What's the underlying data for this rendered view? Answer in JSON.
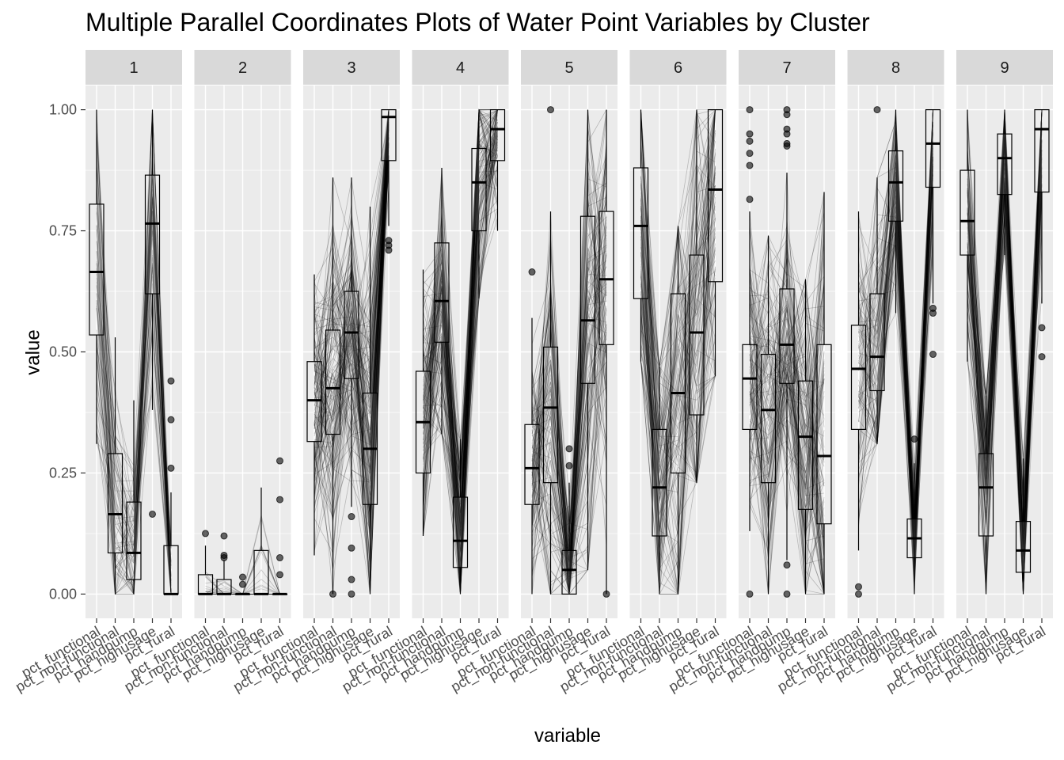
{
  "chart_data": {
    "type": "parallel-coordinates-boxplot",
    "title": "Multiple Parallel Coordinates Plots of Water Point Variables by Cluster",
    "xlabel": "variable",
    "ylabel": "value",
    "ylim": [
      -0.05,
      1.05
    ],
    "yticks": [
      0.0,
      0.25,
      0.5,
      0.75,
      1.0
    ],
    "ytick_labels": [
      "0.00",
      "0.25",
      "0.50",
      "0.75",
      "1.00"
    ],
    "variables": [
      "pct_functional",
      "pct_non-functional",
      "pct_handpump",
      "pct_highusage",
      "pct_rural"
    ],
    "grid": true,
    "colors": {
      "panel_bg": "#ebebeb",
      "strip_bg": "#d9d9d9",
      "grid": "#ffffff",
      "line": "#000000",
      "box": "#000000",
      "box_fill": "#ffffff"
    },
    "facets": [
      {
        "label": "1",
        "lines": 70,
        "spread": 0.1,
        "boxes": [
          [
            0.31,
            0.535,
            0.665,
            0.805,
            1.0
          ],
          [
            0.0,
            0.085,
            0.165,
            0.29,
            0.53
          ],
          [
            0.0,
            0.03,
            0.085,
            0.19,
            0.4
          ],
          [
            0.38,
            0.62,
            0.765,
            0.865,
            1.0
          ],
          [
            0.0,
            0.0,
            0.0,
            0.1,
            0.21
          ]
        ],
        "outliers": [
          [],
          [],
          [],
          [
            0.165
          ],
          [
            0.44,
            0.36,
            0.26
          ]
        ]
      },
      {
        "label": "2",
        "lines": 25,
        "spread": 0.04,
        "boxes": [
          [
            0.0,
            0.0,
            0.0,
            0.04,
            0.1
          ],
          [
            0.0,
            0.0,
            0.0,
            0.03,
            0.07
          ],
          [
            0.0,
            0.0,
            0.0,
            0.0,
            0.0
          ],
          [
            0.0,
            0.0,
            0.0,
            0.09,
            0.22
          ],
          [
            0.0,
            0.0,
            0.0,
            0.0,
            0.0
          ]
        ],
        "outliers": [
          [
            0.125
          ],
          [
            0.12,
            0.08,
            0.075
          ],
          [
            0.035,
            0.02
          ],
          [],
          [
            0.275,
            0.195,
            0.075,
            0.04
          ]
        ]
      },
      {
        "label": "3",
        "lines": 150,
        "spread": 0.14,
        "boxes": [
          [
            0.08,
            0.315,
            0.4,
            0.48,
            0.66
          ],
          [
            0.0,
            0.33,
            0.425,
            0.545,
            0.86
          ],
          [
            0.18,
            0.445,
            0.54,
            0.625,
            0.86
          ],
          [
            0.0,
            0.185,
            0.3,
            0.415,
            0.8
          ],
          [
            0.76,
            0.895,
            0.985,
            1.0,
            1.0
          ]
        ],
        "outliers": [
          [],
          [
            0.0
          ],
          [
            0.16,
            0.095,
            0.03,
            0.0
          ],
          [],
          [
            0.73,
            0.72,
            0.71
          ]
        ]
      },
      {
        "label": "4",
        "lines": 130,
        "spread": 0.1,
        "boxes": [
          [
            0.12,
            0.25,
            0.355,
            0.46,
            0.67
          ],
          [
            0.33,
            0.52,
            0.605,
            0.725,
            0.88
          ],
          [
            0.0,
            0.055,
            0.11,
            0.2,
            0.32
          ],
          [
            0.61,
            0.75,
            0.85,
            0.92,
            1.0
          ],
          [
            0.75,
            0.895,
            0.96,
            1.0,
            1.0
          ]
        ],
        "outliers": [
          [],
          [],
          [],
          [],
          []
        ]
      },
      {
        "label": "5",
        "lines": 120,
        "spread": 0.14,
        "boxes": [
          [
            0.0,
            0.185,
            0.26,
            0.35,
            0.57
          ],
          [
            0.0,
            0.23,
            0.385,
            0.51,
            0.79
          ],
          [
            0.0,
            0.0,
            0.05,
            0.09,
            0.23
          ],
          [
            0.05,
            0.435,
            0.565,
            0.78,
            1.0
          ],
          [
            0.0,
            0.515,
            0.65,
            0.79,
            1.0
          ]
        ],
        "outliers": [
          [
            0.665
          ],
          [
            1.0
          ],
          [
            0.3,
            0.265
          ],
          [],
          [
            0.0
          ]
        ]
      },
      {
        "label": "6",
        "lines": 110,
        "spread": 0.12,
        "boxes": [
          [
            0.48,
            0.61,
            0.76,
            0.88,
            1.0
          ],
          [
            0.0,
            0.12,
            0.22,
            0.34,
            0.47
          ],
          [
            0.0,
            0.25,
            0.415,
            0.62,
            0.76
          ],
          [
            0.23,
            0.37,
            0.54,
            0.7,
            1.0
          ],
          [
            0.45,
            0.645,
            0.835,
            1.0,
            1.0
          ]
        ],
        "outliers": [
          [],
          [],
          [],
          [],
          []
        ]
      },
      {
        "label": "7",
        "lines": 130,
        "spread": 0.16,
        "boxes": [
          [
            0.13,
            0.34,
            0.445,
            0.515,
            0.79
          ],
          [
            0.0,
            0.23,
            0.38,
            0.495,
            0.74
          ],
          [
            0.07,
            0.435,
            0.515,
            0.63,
            0.87
          ],
          [
            0.0,
            0.175,
            0.325,
            0.44,
            0.65
          ],
          [
            0.0,
            0.145,
            0.285,
            0.515,
            0.83
          ]
        ],
        "outliers": [
          [
            1.0,
            0.95,
            0.935,
            0.91,
            0.885,
            0.815,
            0.0
          ],
          [],
          [
            1.0,
            0.99,
            0.96,
            0.95,
            0.93,
            0.925,
            0.06,
            0.0
          ],
          [],
          []
        ]
      },
      {
        "label": "8",
        "lines": 100,
        "spread": 0.07,
        "boxes": [
          [
            0.09,
            0.34,
            0.465,
            0.555,
            0.79
          ],
          [
            0.31,
            0.42,
            0.49,
            0.62,
            0.86
          ],
          [
            0.58,
            0.77,
            0.85,
            0.915,
            1.0
          ],
          [
            0.0,
            0.075,
            0.115,
            0.155,
            0.27
          ],
          [
            0.6,
            0.84,
            0.93,
            1.0,
            1.0
          ]
        ],
        "outliers": [
          [
            0.015,
            0.0
          ],
          [
            1.0
          ],
          [],
          [
            0.32
          ],
          [
            0.59,
            0.58,
            0.495
          ]
        ]
      },
      {
        "label": "9",
        "lines": 100,
        "spread": 0.06,
        "boxes": [
          [
            0.48,
            0.7,
            0.77,
            0.875,
            1.0
          ],
          [
            0.0,
            0.12,
            0.22,
            0.29,
            0.41
          ],
          [
            0.7,
            0.825,
            0.9,
            0.95,
            1.0
          ],
          [
            0.0,
            0.045,
            0.09,
            0.15,
            0.28
          ],
          [
            0.6,
            0.83,
            0.96,
            1.0,
            1.0
          ]
        ],
        "outliers": [
          [],
          [],
          [],
          [],
          [
            0.55,
            0.49
          ]
        ]
      }
    ]
  }
}
